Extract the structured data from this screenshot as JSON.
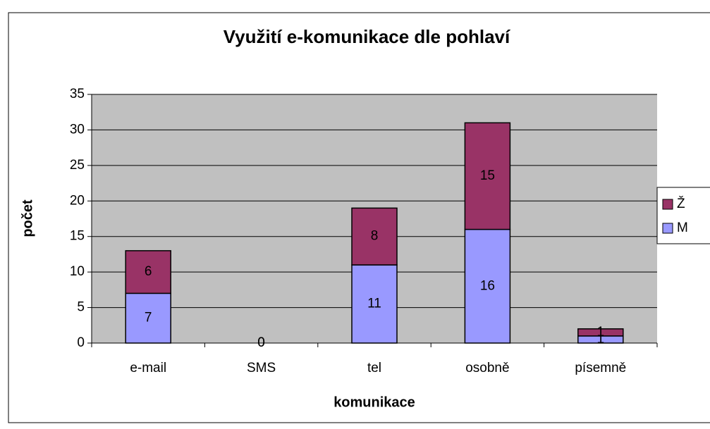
{
  "chart_data": {
    "type": "stacked_bar",
    "title": "Využití e-komunikace dle pohlaví",
    "x_label": "komunikace",
    "y_label": "počet",
    "categories": [
      "e-mail",
      "SMS",
      "tel",
      "osobně",
      "písemně"
    ],
    "series": [
      {
        "name": "M",
        "color": "#9999ff",
        "values": [
          7,
          0,
          11,
          16,
          1
        ]
      },
      {
        "name": "Ž",
        "color": "#993366",
        "values": [
          6,
          0,
          8,
          15,
          1
        ]
      }
    ],
    "ylim": [
      0,
      35
    ],
    "yticks": [
      0,
      5,
      10,
      15,
      20,
      25,
      30,
      35
    ],
    "grid": true,
    "legend": "right"
  }
}
